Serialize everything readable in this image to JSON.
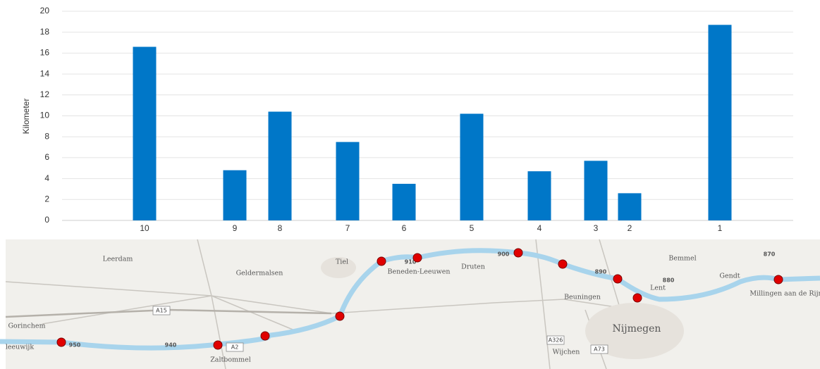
{
  "chart_data": {
    "type": "bar",
    "y_label": "Kilometer",
    "categories": [
      null,
      null,
      "10",
      null,
      null,
      null,
      null,
      null,
      null,
      null,
      "9",
      null,
      null,
      null,
      "8",
      null,
      null,
      null,
      null,
      null,
      "7",
      null,
      null,
      null,
      null,
      "6",
      null,
      null,
      null,
      null,
      null,
      "5",
      null,
      null,
      null,
      null,
      null,
      "4",
      null,
      null,
      null,
      null,
      "3",
      null,
      null,
      "2",
      null,
      null,
      null,
      null,
      null,
      null,
      null,
      "1",
      null,
      null,
      null,
      null,
      null,
      null
    ],
    "values": [
      null,
      null,
      16.6,
      null,
      null,
      null,
      null,
      null,
      null,
      null,
      4.8,
      null,
      null,
      null,
      10.4,
      null,
      null,
      null,
      null,
      null,
      7.5,
      null,
      null,
      null,
      null,
      3.5,
      null,
      null,
      null,
      null,
      null,
      10.2,
      null,
      null,
      null,
      null,
      null,
      4.7,
      null,
      null,
      null,
      null,
      5.7,
      null,
      null,
      2.6,
      null,
      null,
      null,
      null,
      null,
      null,
      null,
      18.7,
      null,
      null,
      null,
      null,
      null,
      null
    ],
    "color": "#0077c8",
    "ylim": [
      0,
      20
    ],
    "yticks": [
      0,
      2,
      4,
      6,
      8,
      10,
      12,
      14,
      16,
      18,
      20
    ],
    "grid": true
  },
  "map": {
    "labels": [
      "Leerdam",
      "Geldermalsen",
      "Tiel",
      "Beneden-Leeuwen",
      "Druten",
      "Bemmel",
      "Gendt",
      "Lent",
      "Beuningen",
      "Nijmegen",
      "Wijchen",
      "Gorinchem",
      "Zaltbommel",
      "Millingen aan de Rijn",
      "leeuwijk",
      "950",
      "940",
      "910",
      "900",
      "890",
      "880",
      "870"
    ],
    "roads": [
      "A15",
      "A2",
      "A326",
      "A73"
    ]
  }
}
